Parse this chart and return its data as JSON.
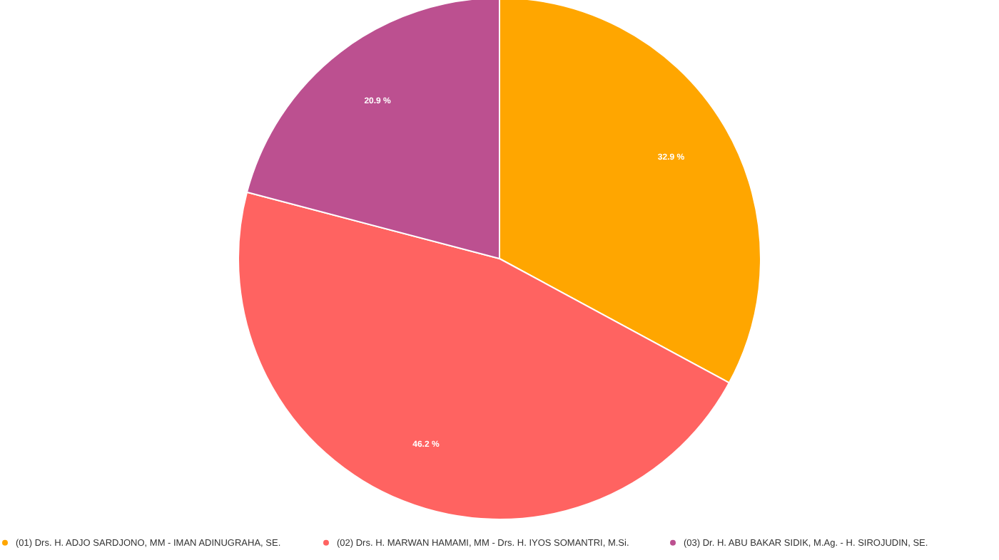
{
  "chart_data": {
    "type": "pie",
    "categories": [
      "(01) Drs. H. ADJO SARDJONO, MM - IMAN ADINUGRAHA, SE.",
      "(02) Drs. H. MARWAN HAMAMI, MM - Drs. H. IYOS SOMANTRI, M.Si.",
      "(03) Dr. H. ABU BAKAR SIDIK, M.Ag. - H. SIROJUDIN, SE."
    ],
    "values": [
      32.9,
      46.2,
      20.9
    ],
    "colors": [
      "#ffa600",
      "#ff6361",
      "#bc5090"
    ],
    "value_labels": [
      "32.9 %",
      "46.2 %",
      "20.9 %"
    ],
    "legend": "bottom"
  }
}
